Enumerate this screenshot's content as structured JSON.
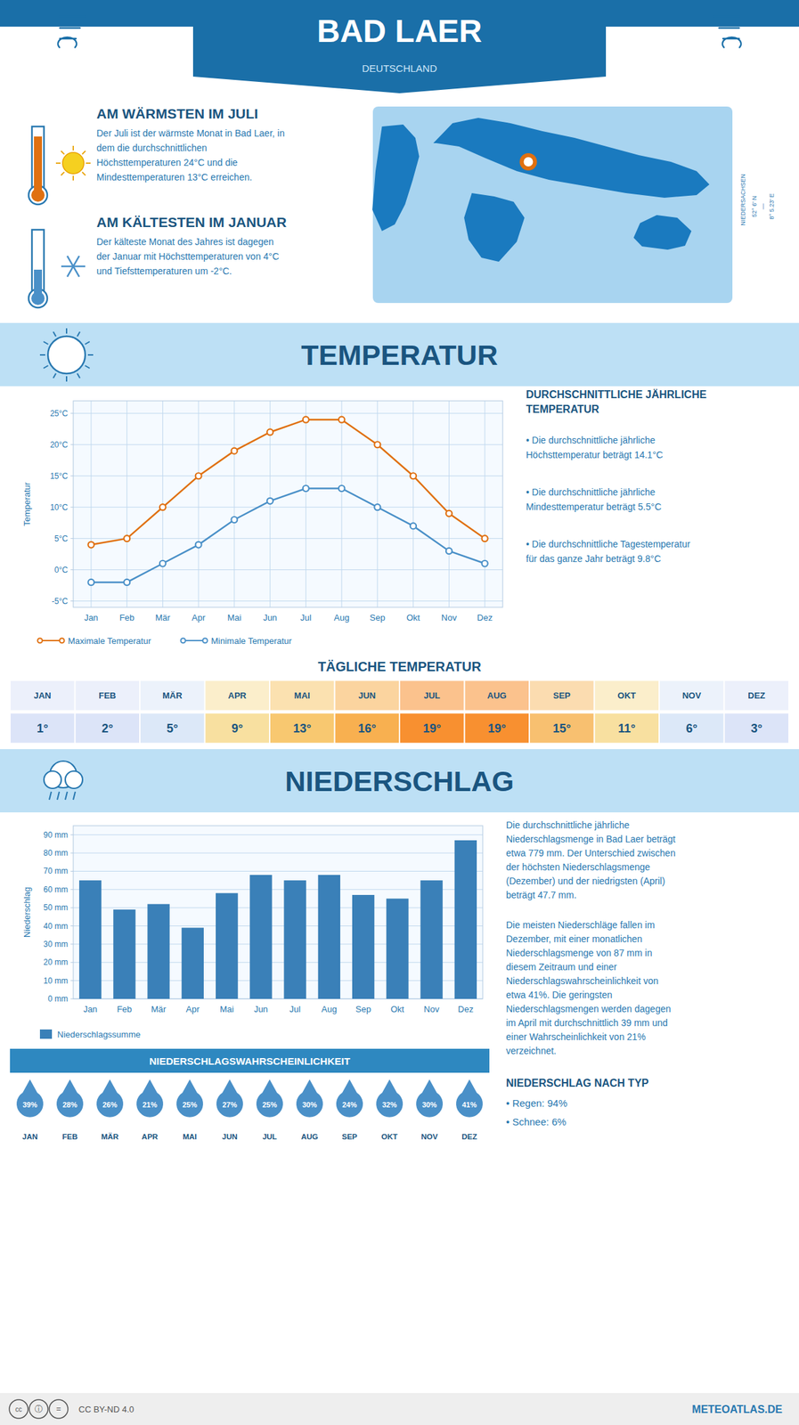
{
  "title": "BAD LAER",
  "subtitle": "DEUTSCHLAND",
  "annotations": [
    "AM WÄRMSTEN IM JULI",
    "Der Juli ist der wärmste Monat in Bad Laer, in\ndem die durchschnittlichen\nHöchsttemperaturen 24°C und die\nMindesttemperaturen 13°C erreichen.",
    "AM KÄLTESTEN IM JANUAR",
    "Der kälteste Monat des Jahres ist dagegen\nder Januar mit Höchsttemperaturen von 4°C\nund Tiefsttemperaturen um -2°C.",
    "52° 6' N",
    "—",
    "8° 5.23' E",
    "NIEDERSACHSEN",
    "cc",
    "ⓘ",
    "=",
    "CC BY-ND 4.0",
    "METEOATLAS.DE"
  ],
  "chart_data": [
    {
      "type": "line",
      "title": "TEMPERATUR",
      "ylabel": "Temperatur",
      "categories": [
        "Jan",
        "Feb",
        "Mär",
        "Apr",
        "Mai",
        "Jun",
        "Jul",
        "Aug",
        "Sep",
        "Okt",
        "Nov",
        "Dez"
      ],
      "series": [
        {
          "name": "Maximale Temperatur",
          "color": "#e07010",
          "marker": "circle",
          "values": [
            4,
            5,
            10,
            15,
            19,
            22,
            24,
            24,
            20,
            15,
            9,
            5
          ]
        },
        {
          "name": "Minimale Temperatur",
          "color": "#4a90c8",
          "marker": "circle",
          "values": [
            -2,
            -2,
            1,
            4,
            8,
            11,
            13,
            13,
            10,
            7,
            3,
            1
          ]
        }
      ],
      "ylim": [
        -6,
        27
      ],
      "yticks": [
        {
          "value": -5,
          "label": "-5°C"
        },
        {
          "value": 0,
          "label": "0°C"
        },
        {
          "value": 5,
          "label": "5°C"
        },
        {
          "value": 10,
          "label": "10°C"
        },
        {
          "value": 15,
          "label": "15°C"
        },
        {
          "value": 20,
          "label": "20°C"
        },
        {
          "value": 25,
          "label": "25°C"
        }
      ],
      "grid": true,
      "annotations": [
        "DURCHSCHNITTLICHE JÄHRLICHE\nTEMPERATUR",
        "• Die durchschnittliche jährliche\nHöchsttemperatur beträgt 14.1°C",
        "• Die durchschnittliche jährliche\nMindesttemperatur beträgt 5.5°C",
        "• Die durchschnittliche Tagestemperatur\nfür das ganze Jahr beträgt 9.8°C"
      ]
    },
    {
      "type": "bar",
      "title": "NIEDERSCHLAG",
      "ylabel": "Niederschlag",
      "categories": [
        "Jan",
        "Feb",
        "Mär",
        "Apr",
        "Mai",
        "Jun",
        "Jul",
        "Aug",
        "Sep",
        "Okt",
        "Nov",
        "Dez"
      ],
      "series": [
        {
          "name": "Niederschlagssumme",
          "color": "#3a80b8",
          "values": [
            65,
            49,
            52,
            39,
            58,
            68,
            65,
            68,
            57,
            55,
            65,
            87
          ]
        }
      ],
      "ylim": [
        0,
        95
      ],
      "yticks": [
        {
          "value": 0,
          "label": "0 mm"
        },
        {
          "value": 10,
          "label": "10 mm"
        },
        {
          "value": 20,
          "label": "20 mm"
        },
        {
          "value": 30,
          "label": "30 mm"
        },
        {
          "value": 40,
          "label": "40 mm"
        },
        {
          "value": 50,
          "label": "50 mm"
        },
        {
          "value": 60,
          "label": "60 mm"
        },
        {
          "value": 70,
          "label": "70 mm"
        },
        {
          "value": 80,
          "label": "80 mm"
        },
        {
          "value": 90,
          "label": "90 mm"
        }
      ],
      "grid": "y",
      "annotations": [
        "Die durchschnittliche jährliche\nNiederschlagsmenge in Bad Laer beträgt\netwa 779 mm. Der Unterschied zwischen\nder höchsten Niederschlagsmenge\n(Dezember) und der niedrigsten (April)\nbeträgt 47.7 mm.",
        "Die meisten Niederschläge fallen im\nDezember, mit einer monatlichen\nNiederschlagsmenge von 87 mm in\ndiesem Zeitraum und einer\nNiederschlagswahrscheinlichkeit von\netwa 41%. Die geringsten\nNiederschlagsmengen werden dagegen\nim April mit durchschnittlich 39 mm und\neiner Wahrscheinlichkeit von 21%\nverzeichnet.",
        "NIEDERSCHLAG NACH TYP",
        "• Regen: 94%",
        "• Schnee: 6%"
      ]
    },
    {
      "type": "table",
      "title": "TÄGLICHE TEMPERATUR",
      "categories": [
        "JAN",
        "FEB",
        "MÄR",
        "APR",
        "MAI",
        "JUN",
        "JUL",
        "AUG",
        "SEP",
        "OKT",
        "NOV",
        "DEZ"
      ],
      "values": [
        1,
        2,
        5,
        9,
        13,
        16,
        19,
        19,
        15,
        11,
        6,
        3
      ],
      "value_labels": [
        "1°",
        "2°",
        "5°",
        "9°",
        "13°",
        "16°",
        "19°",
        "19°",
        "15°",
        "11°",
        "6°",
        "3°"
      ],
      "colors": [
        "#dce4f8",
        "#dce4f8",
        "#dce8f8",
        "#f8e0a0",
        "#f8c870",
        "#f8b050",
        "#f89030",
        "#f89030",
        "#f8c070",
        "#f8e0a0",
        "#dce8f8",
        "#dce4f8"
      ],
      "data_labels": true
    },
    {
      "type": "pictograph",
      "title": "NIEDERSCHLAGSWAHRSCHEINLICHKEIT",
      "categories": [
        "JAN",
        "FEB",
        "MÄR",
        "APR",
        "MAI",
        "JUN",
        "JUL",
        "AUG",
        "SEP",
        "OKT",
        "NOV",
        "DEZ"
      ],
      "values": [
        39,
        28,
        26,
        21,
        25,
        27,
        25,
        30,
        24,
        32,
        30,
        41
      ],
      "value_labels": [
        "39%",
        "28%",
        "26%",
        "21%",
        "25%",
        "27%",
        "25%",
        "30%",
        "24%",
        "32%",
        "30%",
        "41%"
      ],
      "color": "#4a90c8",
      "data_labels": true
    }
  ]
}
